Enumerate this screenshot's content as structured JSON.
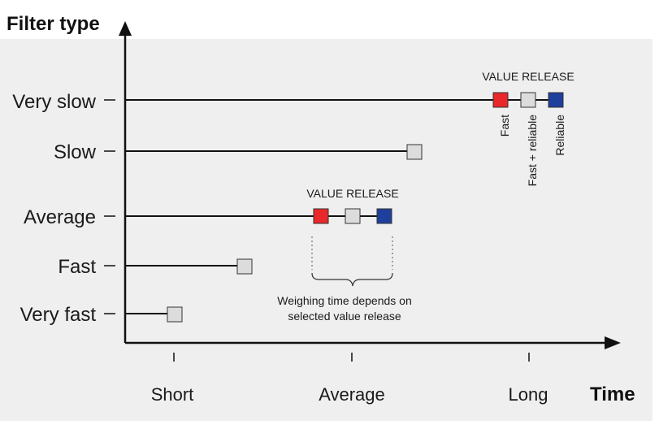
{
  "title_y": "Filter type",
  "title_x": "Time",
  "filter_types": [
    "Very slow",
    "Slow",
    "Average",
    "Fast",
    "Very fast"
  ],
  "time_labels": [
    "Short",
    "Average",
    "Long"
  ],
  "value_release_label": "VALUE RELEASE",
  "release_options": [
    "Fast",
    "Fast + reliable",
    "Reliable"
  ],
  "note": [
    "Weighing time depends on",
    "selected value release"
  ],
  "colors": {
    "fast": "#e8282a",
    "fast_reliable": "#dcdcdc",
    "reliable": "#1f3f9c",
    "panel": "#efefef",
    "line": "#111111"
  }
}
